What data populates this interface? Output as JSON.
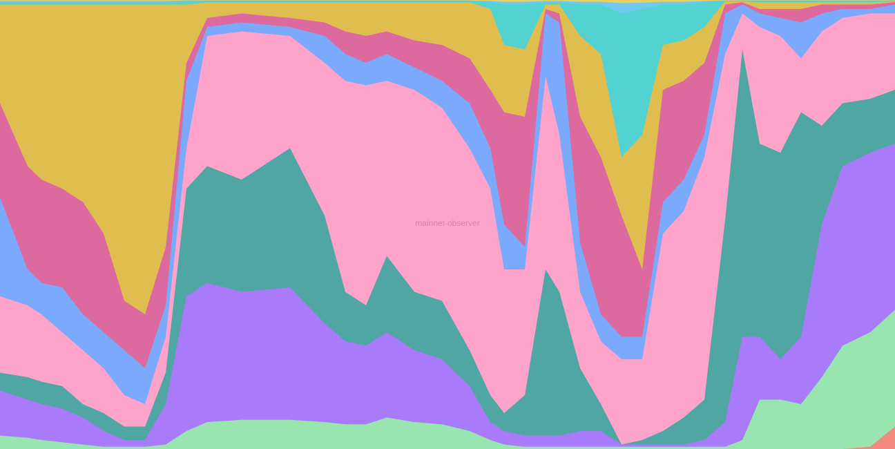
{
  "watermark": "mainnet-observer",
  "chart_data": {
    "type": "area",
    "stacking": "percent",
    "axes_visible": false,
    "grid": false,
    "legend": "none",
    "ylim": [
      0,
      100
    ],
    "x": [
      0,
      40,
      60,
      90,
      120,
      150,
      180,
      210,
      240,
      270,
      300,
      350,
      420,
      470,
      500,
      530,
      560,
      600,
      640,
      680,
      710,
      730,
      760,
      790,
      810,
      840,
      870,
      900,
      930,
      960,
      990,
      1020,
      1050,
      1075,
      1100,
      1130,
      1160,
      1190,
      1220,
      1260,
      1296
    ],
    "series": [
      {
        "color": "#f28a80",
        "values": [
          0,
          0,
          0,
          0,
          0,
          0,
          0,
          0,
          0,
          0,
          0,
          0,
          0,
          0,
          0,
          0,
          0,
          0,
          0,
          0,
          0,
          0,
          0,
          0,
          0,
          0,
          0,
          0,
          0,
          0,
          0,
          0,
          0,
          0,
          0,
          0,
          0,
          0,
          0,
          0.5,
          5
        ]
      },
      {
        "color": "#98e5b0",
        "values": [
          3,
          2.5,
          2,
          1.5,
          1,
          0.5,
          0.5,
          0.5,
          1,
          4,
          6,
          6.5,
          6.5,
          6,
          5.5,
          5.5,
          7,
          6,
          5.5,
          4,
          2,
          1,
          0.5,
          0.5,
          0.5,
          0.5,
          0.5,
          0.5,
          0.5,
          0.5,
          0.5,
          0.5,
          0.5,
          2,
          11,
          11,
          10,
          16,
          23,
          26,
          31
        ]
      },
      {
        "color": "#a97bfa",
        "values": [
          13,
          11,
          10,
          9,
          7,
          4,
          2,
          2,
          10,
          34,
          37,
          35,
          36,
          28,
          24,
          23,
          26,
          22,
          20,
          14,
          6,
          4,
          3,
          3,
          3,
          4,
          4,
          1,
          1,
          1,
          1,
          2,
          6,
          25,
          25,
          20,
          25,
          50,
          63,
          66,
          68
        ]
      },
      {
        "color": "#50a6a3",
        "values": [
          17,
          16,
          15,
          14,
          10,
          8,
          5,
          5,
          17,
          58,
          63,
          60,
          67,
          52,
          35,
          32,
          43,
          35,
          33,
          22,
          12,
          8,
          12,
          40,
          35,
          18,
          10,
          1,
          2,
          4,
          7,
          11,
          51,
          89,
          68,
          66,
          75,
          72,
          77,
          78,
          80
        ]
      },
      {
        "color": "#fea4cb",
        "values": [
          34,
          32,
          30,
          26,
          22,
          18,
          12,
          10,
          25,
          67,
          92,
          93,
          92,
          86,
          82,
          81,
          82,
          80,
          76,
          67,
          58,
          40,
          40,
          83,
          70,
          35,
          24,
          20,
          20,
          48,
          53,
          65,
          88,
          97,
          94,
          92,
          87,
          93,
          96,
          97,
          97
        ]
      },
      {
        "color": "#7baafc",
        "values": [
          56,
          40,
          37,
          36,
          30,
          26,
          22,
          18,
          32,
          82,
          94,
          95,
          94,
          92,
          88,
          86,
          88,
          85,
          82,
          77,
          67,
          50,
          45,
          97,
          95,
          46,
          30,
          25,
          25,
          55,
          60,
          70,
          97,
          99,
          97,
          96,
          95,
          97,
          98,
          98,
          99
        ]
      },
      {
        "color": "#dd6a9f",
        "values": [
          77,
          63,
          60,
          58,
          55,
          48,
          33,
          30,
          45,
          86,
          96,
          97,
          96,
          95,
          93,
          92,
          93,
          91,
          90,
          87,
          80,
          75,
          74,
          98,
          97,
          74,
          65,
          52,
          40,
          80,
          82,
          86,
          99,
          99.5,
          98,
          98,
          98,
          99,
          99,
          99,
          99.5
        ]
      },
      {
        "color": "#e0bd4f",
        "values": [
          99,
          99,
          99,
          99,
          99,
          99,
          99,
          99,
          99,
          99,
          99.5,
          99.5,
          99.5,
          99.5,
          99.5,
          99.5,
          99.5,
          99.5,
          99.5,
          99.5,
          98,
          90,
          89,
          99,
          99,
          92,
          88,
          65,
          70,
          90,
          91,
          94,
          99.7,
          99.7,
          99.5,
          99.5,
          99.5,
          99.5,
          99.5,
          99.5,
          99.7
        ]
      },
      {
        "color": "#52d2d0",
        "values": [
          99.5,
          99.5,
          99.5,
          99.5,
          99.5,
          99.5,
          99.5,
          99.5,
          99.5,
          99.7,
          99.8,
          99.8,
          99.8,
          99.8,
          99.8,
          99.8,
          99.8,
          99.8,
          99.8,
          99.8,
          99.5,
          99,
          99,
          99.5,
          99.5,
          99,
          99,
          97,
          98,
          99,
          99,
          99.5,
          99.8,
          99.8,
          99.8,
          99.8,
          99.8,
          99.8,
          99.8,
          99.8,
          99.8
        ]
      },
      {
        "color": "#6fc9f0",
        "values": [
          99.8,
          99.8,
          99.8,
          99.8,
          99.8,
          99.8,
          99.8,
          99.8,
          99.8,
          99.9,
          99.9,
          99.9,
          99.9,
          99.9,
          99.9,
          99.9,
          99.9,
          99.9,
          99.9,
          99.9,
          99.8,
          99.6,
          99.6,
          99.8,
          99.8,
          99.6,
          99.6,
          99.3,
          99.4,
          99.6,
          99.6,
          99.8,
          99.9,
          99.9,
          99.9,
          99.9,
          99.9,
          99.9,
          99.9,
          99.9,
          99.9
        ]
      },
      {
        "color": "#e8d060",
        "values": [
          100,
          100,
          100,
          100,
          100,
          100,
          100,
          100,
          100,
          100,
          100,
          100,
          100,
          100,
          100,
          100,
          100,
          100,
          100,
          100,
          100,
          100,
          100,
          100,
          100,
          100,
          100,
          100,
          100,
          100,
          100,
          100,
          100,
          100,
          100,
          100,
          100,
          100,
          100,
          100,
          100
        ]
      }
    ],
    "annotations": []
  }
}
